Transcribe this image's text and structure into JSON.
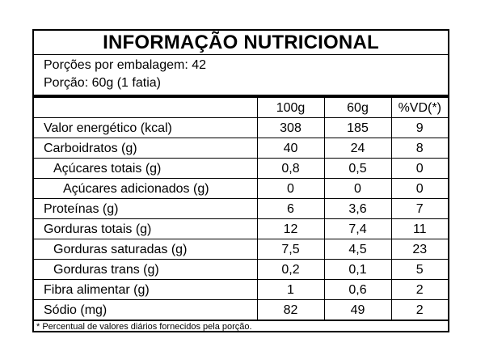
{
  "title": "INFORMAÇÃO NUTRICIONAL",
  "servings_per_package": "Porções por embalagem: 42",
  "serving_size": "Porção: 60g (1 fatia)",
  "columns": [
    "100g",
    "60g",
    "%VD(*)"
  ],
  "rows": [
    {
      "name": "Valor energético (kcal)",
      "v100": "308",
      "v60": "185",
      "vd": "9"
    },
    {
      "name": "Carboidratos (g)",
      "v100": "40",
      "v60": "24",
      "vd": "8"
    },
    {
      "name": "Açúcares totais (g)",
      "v100": "0,8",
      "v60": "0,5",
      "vd": "0"
    },
    {
      "name": "Açúcares adicionados (g)",
      "v100": "0",
      "v60": "0",
      "vd": "0"
    },
    {
      "name": "Proteínas (g)",
      "v100": "6",
      "v60": "3,6",
      "vd": "7"
    },
    {
      "name": "Gorduras totais (g)",
      "v100": "12",
      "v60": "7,4",
      "vd": "11"
    },
    {
      "name": "Gorduras saturadas (g)",
      "v100": "7,5",
      "v60": "4,5",
      "vd": "23"
    },
    {
      "name": "Gorduras trans (g)",
      "v100": "0,2",
      "v60": "0,1",
      "vd": "5"
    },
    {
      "name": "Fibra alimentar (g)",
      "v100": "1",
      "v60": "0,6",
      "vd": "2"
    },
    {
      "name": "Sódio (mg)",
      "v100": "82",
      "v60": "49",
      "vd": "2"
    }
  ],
  "footnote": "* Percentual de valores diários fornecidos pela porção."
}
